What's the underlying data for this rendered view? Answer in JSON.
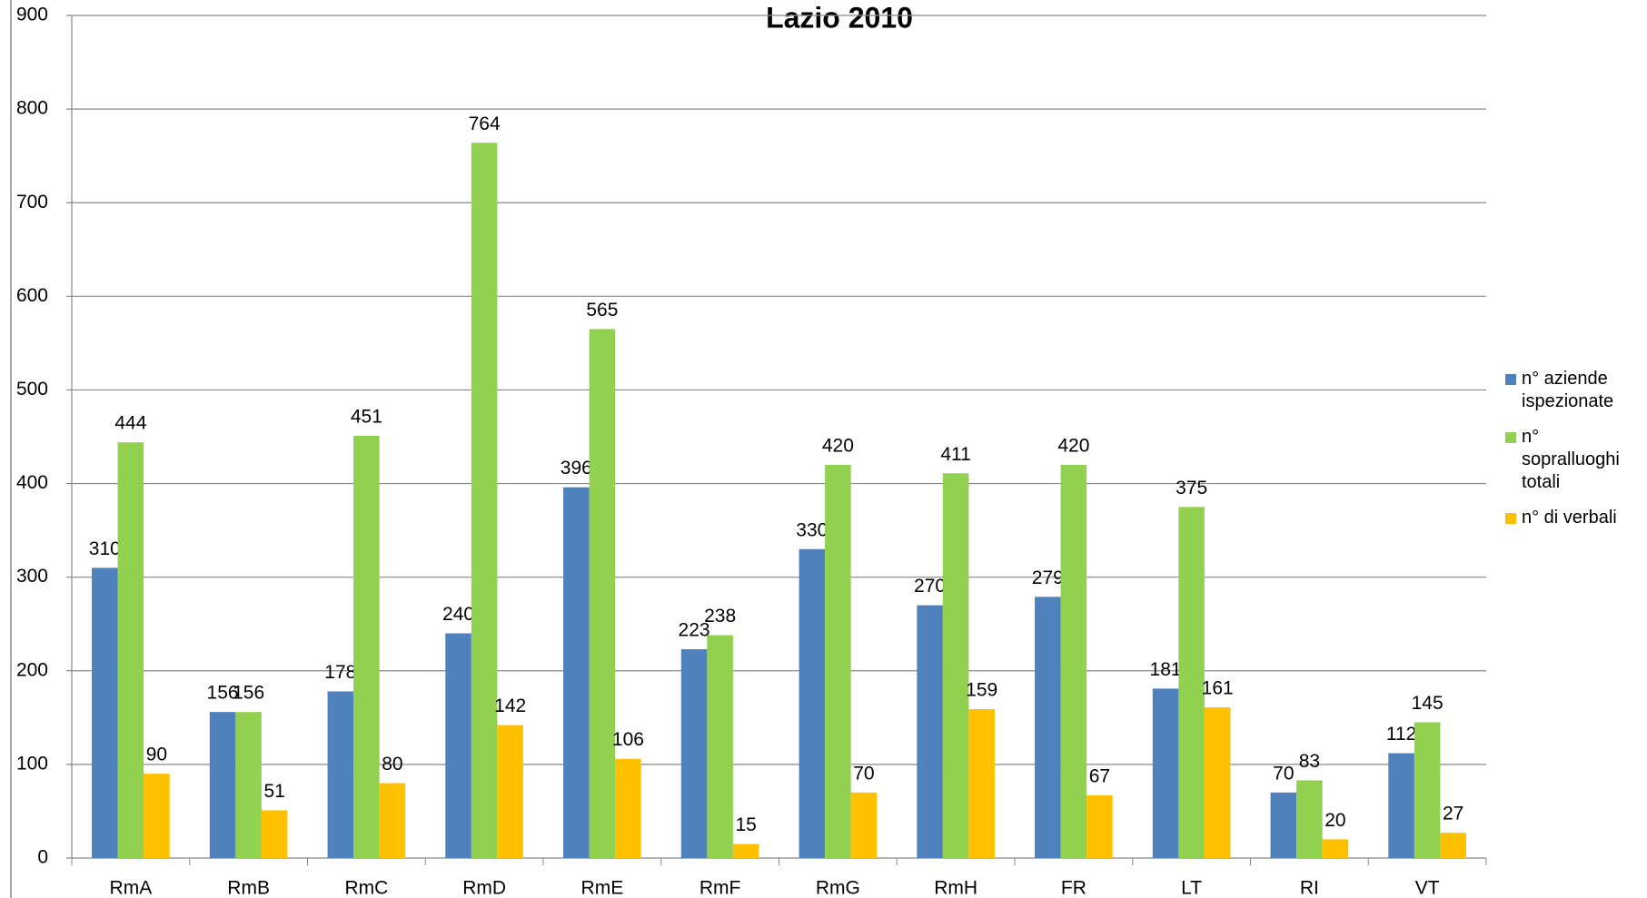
{
  "chart_data": {
    "type": "bar",
    "title": "Lazio 2010",
    "categories": [
      "RmA",
      "RmB",
      "RmC",
      "RmD",
      "RmE",
      "RmF",
      "RmG",
      "RmH",
      "FR",
      "LT",
      "RI",
      "VT"
    ],
    "series": [
      {
        "name": "n° aziende ispezionate",
        "color": "#4f81bd",
        "values": [
          310,
          156,
          178,
          240,
          396,
          223,
          330,
          270,
          279,
          181,
          70,
          112
        ]
      },
      {
        "name": "n° sopralluoghi totali",
        "color": "#92d050",
        "values": [
          444,
          156,
          451,
          764,
          565,
          238,
          420,
          411,
          420,
          375,
          83,
          145
        ]
      },
      {
        "name": "n° di verbali",
        "color": "#ffc000",
        "values": [
          90,
          51,
          80,
          142,
          106,
          15,
          70,
          159,
          67,
          161,
          20,
          27
        ]
      }
    ],
    "ylim": [
      0,
      900
    ],
    "yticks": [
      0,
      100,
      200,
      300,
      400,
      500,
      600,
      700,
      800,
      900
    ],
    "grid": true,
    "legend": "right"
  }
}
